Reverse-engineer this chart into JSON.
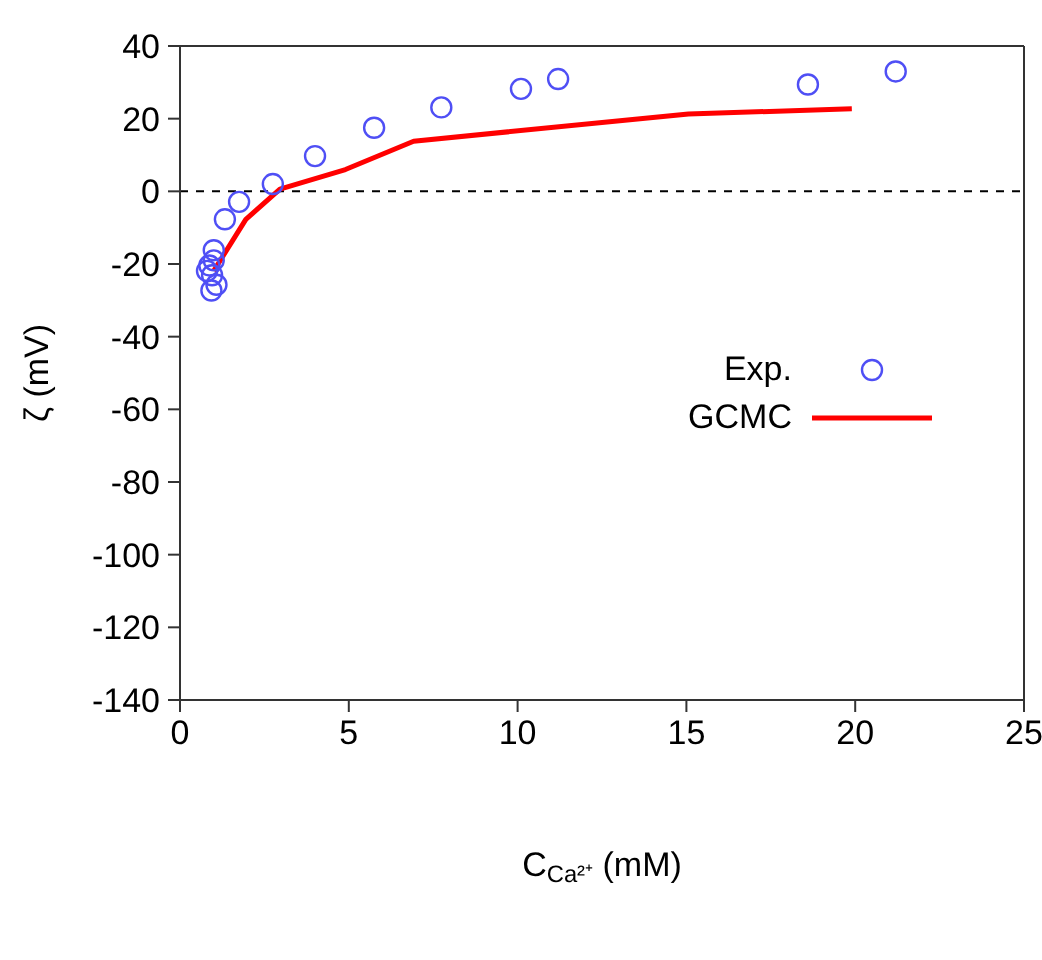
{
  "chart_data": {
    "type": "scatter",
    "xlabel": "C$_{Ca²⁺}$ (mM)",
    "ylabel": "ζ (mV)",
    "xlim": [
      0,
      25
    ],
    "xticks": [
      0,
      5,
      10,
      15,
      20,
      25
    ],
    "ylim": [
      -140,
      40
    ],
    "yticks": [
      -140,
      -120,
      -100,
      -80,
      -60,
      -40,
      -20,
      0,
      20,
      40
    ],
    "legend": "right",
    "ref_lines": [
      {
        "axis": "y",
        "value": 0,
        "line_style": "dashed",
        "color": "#000000"
      }
    ],
    "series": [
      {
        "name": "Exp.",
        "marker": "circle",
        "color": "#4f4ff5",
        "x": [
          21.2,
          18.6,
          11.2,
          10.1,
          7.74,
          5.75,
          4.0,
          2.75,
          1.75,
          1.33,
          1.0,
          0.87,
          0.95,
          1.08,
          0.93,
          1.0,
          0.8
        ],
        "values": [
          33.0,
          29.4,
          30.9,
          28.2,
          23.1,
          17.5,
          9.7,
          2.0,
          -2.9,
          -7.7,
          -16.2,
          -20.4,
          -23.1,
          -25.7,
          -27.3,
          -19.0,
          -21.9
        ]
      },
      {
        "name": "GCMC",
        "type": "line",
        "marker": "none",
        "line_style": "solid",
        "color": "#ff0000",
        "x": [
          1.0,
          1.95,
          2.96,
          4.9,
          6.92,
          15.06,
          19.9
        ],
        "values": [
          -21.9,
          -7.7,
          0.6,
          6.0,
          13.8,
          21.3,
          22.7
        ]
      }
    ]
  }
}
